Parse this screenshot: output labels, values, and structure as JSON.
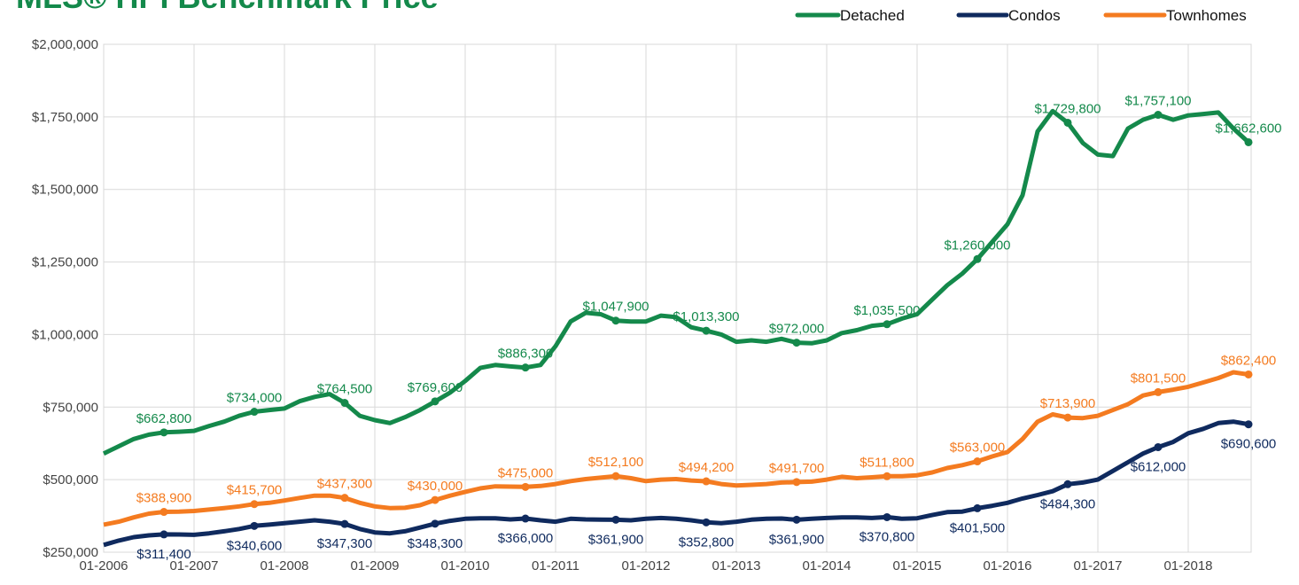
{
  "chart_data": {
    "type": "line",
    "title": "MLS® HPI Benchmark Price",
    "categories": [
      "01-2006",
      null,
      null,
      null,
      null,
      null,
      "01-2007",
      null,
      null,
      null,
      null,
      null,
      "01-2008",
      null,
      null,
      null,
      null,
      null,
      "01-2009",
      null,
      null,
      null,
      null,
      null,
      "01-2010",
      null,
      null,
      null,
      null,
      null,
      "01-2011",
      null,
      null,
      null,
      null,
      null,
      "01-2012",
      null,
      null,
      null,
      null,
      null,
      "01-2013",
      null,
      null,
      null,
      null,
      null,
      "01-2014",
      null,
      null,
      null,
      null,
      null,
      "01-2015",
      null,
      null,
      null,
      null,
      null,
      "01-2016",
      null,
      null,
      null,
      null,
      null,
      "01-2017",
      null,
      null,
      null,
      null,
      null,
      "01-2018",
      null,
      null,
      null,
      null
    ],
    "ylim": [
      250000,
      2000000
    ],
    "yticks": [
      {
        "value": 250000,
        "label": "$250,000"
      },
      {
        "value": 500000,
        "label": "$500,000"
      },
      {
        "value": 750000,
        "label": "$750,000"
      },
      {
        "value": 1000000,
        "label": "$1,000,000"
      },
      {
        "value": 1250000,
        "label": "$1,250,000"
      },
      {
        "value": 1500000,
        "label": "$1,500,000"
      },
      {
        "value": 1750000,
        "label": "$1,750,000"
      },
      {
        "value": 2000000,
        "label": "$2,000,000"
      }
    ],
    "grid": true,
    "legend": "top-right",
    "series": [
      {
        "name": "Detached",
        "color": "#14894b",
        "values": [
          590000,
          615000,
          640000,
          655000,
          662800,
          665000,
          668000,
          685000,
          700000,
          720000,
          734000,
          740000,
          745000,
          770000,
          785000,
          795000,
          764500,
          720000,
          705000,
          695000,
          715000,
          740000,
          769600,
          800000,
          840000,
          885000,
          895000,
          890000,
          886300,
          895000,
          960000,
          1045000,
          1075000,
          1070000,
          1047900,
          1045000,
          1045000,
          1065000,
          1060000,
          1025000,
          1013300,
          1000000,
          975000,
          980000,
          975000,
          985000,
          972000,
          970000,
          980000,
          1005000,
          1015000,
          1030000,
          1035500,
          1055000,
          1070000,
          1120000,
          1170000,
          1210000,
          1260000,
          1320000,
          1380000,
          1480000,
          1700000,
          1770000,
          1729800,
          1660000,
          1620000,
          1615000,
          1710000,
          1740000,
          1757100,
          1740000,
          1755000,
          1760000,
          1765000,
          1710000,
          1662600
        ],
        "value_labels": [
          null,
          null,
          null,
          null,
          "$662,800",
          null,
          null,
          null,
          null,
          null,
          "$734,000",
          null,
          null,
          null,
          null,
          null,
          "$764,500",
          null,
          null,
          null,
          null,
          null,
          "$769,600",
          null,
          null,
          null,
          null,
          null,
          "$886,300",
          null,
          null,
          null,
          null,
          null,
          "$1,047,900",
          null,
          null,
          null,
          null,
          null,
          "$1,013,300",
          null,
          null,
          null,
          null,
          null,
          "$972,000",
          null,
          null,
          null,
          null,
          null,
          "$1,035,500",
          null,
          null,
          null,
          null,
          null,
          "$1,260,000",
          null,
          null,
          null,
          null,
          null,
          "$1,729,800",
          null,
          null,
          null,
          null,
          null,
          "$1,757,100",
          null,
          null,
          null,
          null,
          null,
          "$1,662,600"
        ]
      },
      {
        "name": "Condos",
        "color": "#0f2a5e",
        "values": [
          275000,
          290000,
          302000,
          308000,
          311400,
          311000,
          310000,
          315000,
          322000,
          330000,
          340600,
          345000,
          350000,
          355000,
          360000,
          355000,
          347300,
          330000,
          318000,
          315000,
          322000,
          335000,
          348300,
          358000,
          365000,
          367000,
          367000,
          363000,
          366000,
          360000,
          355000,
          365000,
          363000,
          362000,
          361900,
          360000,
          365000,
          368000,
          365000,
          360000,
          352800,
          350000,
          355000,
          362000,
          365000,
          366000,
          361900,
          365000,
          368000,
          370000,
          370000,
          368000,
          370800,
          365000,
          367000,
          378000,
          388000,
          390000,
          401500,
          410000,
          420000,
          435000,
          447000,
          460000,
          484300,
          490000,
          500000,
          530000,
          560000,
          590000,
          612000,
          630000,
          660000,
          675000,
          695000,
          700000,
          690600
        ],
        "value_labels": [
          null,
          null,
          null,
          null,
          "$311,400",
          null,
          null,
          null,
          null,
          null,
          "$340,600",
          null,
          null,
          null,
          null,
          null,
          "$347,300",
          null,
          null,
          null,
          null,
          null,
          "$348,300",
          null,
          null,
          null,
          null,
          null,
          "$366,000",
          null,
          null,
          null,
          null,
          null,
          "$361,900",
          null,
          null,
          null,
          null,
          null,
          "$352,800",
          null,
          null,
          null,
          null,
          null,
          "$361,900",
          null,
          null,
          null,
          null,
          null,
          "$370,800",
          null,
          null,
          null,
          null,
          null,
          "$401,500",
          null,
          null,
          null,
          null,
          null,
          "$484,300",
          null,
          null,
          null,
          null,
          null,
          "$612,000",
          null,
          null,
          null,
          null,
          null,
          "$690,600"
        ]
      },
      {
        "name": "Townhomes",
        "color": "#f47b20",
        "values": [
          345000,
          355000,
          370000,
          383000,
          388900,
          390000,
          392000,
          397000,
          402000,
          408000,
          415700,
          420000,
          428000,
          437000,
          445000,
          445000,
          437300,
          420000,
          408000,
          402000,
          403000,
          412000,
          430000,
          445000,
          458000,
          470000,
          477000,
          476000,
          475000,
          478000,
          485000,
          495000,
          502000,
          507000,
          512100,
          505000,
          495000,
          500000,
          502000,
          497000,
          494200,
          485000,
          480000,
          482000,
          485000,
          490000,
          491700,
          493000,
          500000,
          510000,
          505000,
          508000,
          511800,
          512000,
          515000,
          525000,
          540000,
          550000,
          563000,
          580000,
          595000,
          640000,
          700000,
          725000,
          713900,
          712000,
          720000,
          740000,
          760000,
          790000,
          801500,
          810000,
          820000,
          835000,
          850000,
          870000,
          862400
        ],
        "value_labels": [
          null,
          null,
          null,
          null,
          "$388,900",
          null,
          null,
          null,
          null,
          null,
          "$415,700",
          null,
          null,
          null,
          null,
          null,
          "$437,300",
          null,
          null,
          null,
          null,
          null,
          "$430,000",
          null,
          null,
          null,
          null,
          null,
          "$475,000",
          null,
          null,
          null,
          null,
          null,
          "$512,100",
          null,
          null,
          null,
          null,
          null,
          "$494,200",
          null,
          null,
          null,
          null,
          null,
          "$491,700",
          null,
          null,
          null,
          null,
          null,
          "$511,800",
          null,
          null,
          null,
          null,
          null,
          "$563,000",
          null,
          null,
          null,
          null,
          null,
          "$713,900",
          null,
          null,
          null,
          null,
          null,
          "$801,500",
          null,
          null,
          null,
          null,
          null,
          "$862,400"
        ]
      }
    ]
  }
}
